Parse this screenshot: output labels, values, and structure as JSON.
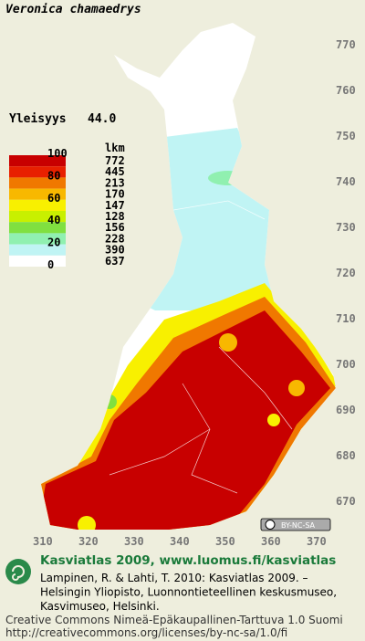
{
  "title": "Veronica chamaedrys",
  "frequency": {
    "label": "Yleisyys",
    "value": "44.0"
  },
  "legend": {
    "scale_labels": [
      100,
      80,
      60,
      40,
      20,
      0
    ],
    "count_header": "lkm",
    "counts": [
      772,
      445,
      213,
      170,
      147,
      128,
      156,
      228,
      390,
      637
    ],
    "colors": [
      "#c80000",
      "#e82000",
      "#f07800",
      "#f8b800",
      "#f8f000",
      "#c8f000",
      "#80e040",
      "#90f0b0",
      "#c0f4f4",
      "#ffffff"
    ]
  },
  "grid_labels_y": [
    770,
    760,
    750,
    740,
    730,
    720,
    710,
    700,
    690,
    680,
    670
  ],
  "grid_labels_x": [
    310,
    320,
    330,
    340,
    350,
    360,
    370
  ],
  "license_badge": "BY-NC-SA",
  "footer": {
    "heading": "Kasviatlas 2009, www.luomus.fi/kasviatlas",
    "citation": [
      "Lampinen, R. & Lahti, T. 2010: Kasviatlas 2009. –",
      "Helsingin Yliopisto, Luonnontieteellinen keskusmuseo,",
      "Kasvimuseo, Helsinki."
    ],
    "license": [
      "Creative Commons Nimeä-Epäkaupallinen-Tarttuva 1.0 Suomi",
      "http://creativecommons.org/licenses/by-nc-sa/1.0/fi"
    ]
  }
}
